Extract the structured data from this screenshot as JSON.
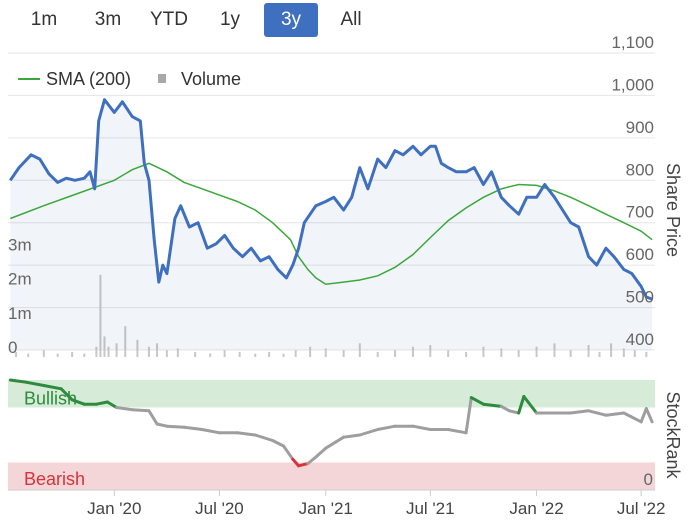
{
  "range_buttons": [
    {
      "label": "1m",
      "active": false
    },
    {
      "label": "3m",
      "active": false
    },
    {
      "label": "YTD",
      "active": false
    },
    {
      "label": "1y",
      "active": false
    },
    {
      "label": "3y",
      "active": true
    },
    {
      "label": "All",
      "active": false
    }
  ],
  "legend": {
    "sma_label": "SMA (200)",
    "volume_label": "Volume"
  },
  "colors": {
    "price": "#3f6fbf",
    "sma": "#3aa83a",
    "volume": "#c8c8c8",
    "rank_neutral": "#9e9e9e",
    "rank_bullish": "#2e8b3e",
    "rank_bearish": "#d9323c",
    "bullish_band": "#d6ecd8",
    "bearish_band": "#f5d6d8",
    "active_button": "#3f6fbf"
  },
  "chart_data": [
    {
      "type": "line",
      "ylabel": "Share Price",
      "ylim": [
        400,
        1100
      ],
      "y_ticks": [
        "400",
        "500",
        "600",
        "700",
        "800",
        "900",
        "1,000",
        "1,100"
      ],
      "x_ticks": [
        "Jan '20",
        "Jul '20",
        "Jan '21",
        "Jul '21",
        "Jan '22",
        "Jul '22"
      ],
      "series": [
        {
          "name": "",
          "role": "price",
          "x": [
            "2019-07-05",
            "2019-07-20",
            "2019-08-10",
            "2019-08-25",
            "2019-09-10",
            "2019-09-25",
            "2019-10-10",
            "2019-10-25",
            "2019-11-10",
            "2019-11-20",
            "2019-11-28",
            "2019-12-05",
            "2019-12-15",
            "2020-01-01",
            "2020-01-15",
            "2020-02-01",
            "2020-02-15",
            "2020-02-22",
            "2020-03-01",
            "2020-03-10",
            "2020-03-18",
            "2020-03-25",
            "2020-04-01",
            "2020-04-15",
            "2020-04-25",
            "2020-05-10",
            "2020-05-25",
            "2020-06-10",
            "2020-06-25",
            "2020-07-10",
            "2020-07-25",
            "2020-08-10",
            "2020-08-25",
            "2020-09-10",
            "2020-09-25",
            "2020-10-10",
            "2020-10-25",
            "2020-11-05",
            "2020-11-15",
            "2020-11-25",
            "2020-12-05",
            "2020-12-15",
            "2021-01-01",
            "2021-01-15",
            "2021-02-01",
            "2021-02-15",
            "2021-03-01",
            "2021-03-15",
            "2021-04-01",
            "2021-04-15",
            "2021-05-01",
            "2021-05-15",
            "2021-06-01",
            "2021-06-15",
            "2021-07-01",
            "2021-07-10",
            "2021-07-20",
            "2021-08-01",
            "2021-08-15",
            "2021-09-01",
            "2021-09-15",
            "2021-10-01",
            "2021-10-15",
            "2021-11-01",
            "2021-11-15",
            "2021-12-01",
            "2021-12-15",
            "2022-01-01",
            "2022-01-15",
            "2022-02-01",
            "2022-02-15",
            "2022-03-01",
            "2022-03-15",
            "2022-04-01",
            "2022-04-15",
            "2022-05-01",
            "2022-05-15",
            "2022-06-01",
            "2022-06-15",
            "2022-07-01",
            "2022-07-10",
            "2022-07-20"
          ],
          "y": [
            800,
            830,
            860,
            850,
            815,
            795,
            805,
            800,
            805,
            820,
            780,
            940,
            990,
            960,
            985,
            950,
            940,
            840,
            800,
            660,
            560,
            600,
            580,
            710,
            740,
            690,
            700,
            640,
            650,
            670,
            640,
            620,
            640,
            610,
            620,
            590,
            570,
            600,
            640,
            700,
            720,
            740,
            750,
            760,
            730,
            760,
            830,
            780,
            850,
            830,
            870,
            860,
            880,
            860,
            880,
            880,
            840,
            830,
            820,
            820,
            830,
            790,
            820,
            760,
            740,
            720,
            760,
            760,
            790,
            760,
            730,
            700,
            690,
            620,
            600,
            640,
            620,
            590,
            580,
            550,
            525,
            520
          ]
        },
        {
          "name": "SMA (200)",
          "role": "sma",
          "x": [
            "2019-07-05",
            "2019-09-01",
            "2019-11-01",
            "2020-01-01",
            "2020-02-01",
            "2020-03-01",
            "2020-04-01",
            "2020-05-01",
            "2020-06-01",
            "2020-07-01",
            "2020-08-01",
            "2020-09-01",
            "2020-10-01",
            "2020-11-01",
            "2020-11-15",
            "2020-12-01",
            "2020-12-15",
            "2021-01-01",
            "2021-02-01",
            "2021-03-01",
            "2021-04-01",
            "2021-05-01",
            "2021-06-01",
            "2021-07-01",
            "2021-08-01",
            "2021-09-01",
            "2021-10-01",
            "2021-11-01",
            "2021-12-01",
            "2022-01-01",
            "2022-02-01",
            "2022-03-01",
            "2022-04-01",
            "2022-05-01",
            "2022-06-01",
            "2022-07-01",
            "2022-07-20"
          ],
          "y": [
            710,
            740,
            770,
            800,
            825,
            840,
            820,
            795,
            780,
            765,
            750,
            730,
            700,
            660,
            620,
            590,
            570,
            555,
            560,
            565,
            575,
            595,
            625,
            665,
            705,
            735,
            760,
            780,
            790,
            788,
            775,
            760,
            740,
            720,
            700,
            680,
            660
          ]
        }
      ]
    },
    {
      "type": "bar",
      "series_name": "Volume",
      "ylim": [
        0,
        4
      ],
      "y_ticks": [
        "0",
        "1m",
        "2m",
        "3m"
      ],
      "x": [
        "2019-07-15",
        "2019-08-05",
        "2019-09-01",
        "2019-09-25",
        "2019-10-20",
        "2019-11-10",
        "2019-12-01",
        "2019-12-08",
        "2019-12-15",
        "2019-12-22",
        "2020-01-05",
        "2020-01-20",
        "2020-02-10",
        "2020-03-01",
        "2020-03-15",
        "2020-04-01",
        "2020-04-20",
        "2020-05-20",
        "2020-06-15",
        "2020-07-10",
        "2020-08-05",
        "2020-09-01",
        "2020-09-25",
        "2020-10-20",
        "2020-11-10",
        "2020-12-05",
        "2021-01-01",
        "2021-02-01",
        "2021-03-01",
        "2021-04-01",
        "2021-05-01",
        "2021-06-01",
        "2021-07-01",
        "2021-08-01",
        "2021-09-01",
        "2021-10-01",
        "2021-11-01",
        "2021-12-01",
        "2022-01-01",
        "2022-02-01",
        "2022-03-01",
        "2022-04-01",
        "2022-04-20",
        "2022-05-10",
        "2022-06-01",
        "2022-06-20",
        "2022-07-10"
      ],
      "values": [
        0.15,
        0.1,
        0.2,
        0.1,
        0.15,
        0.1,
        0.3,
        2.4,
        0.6,
        0.3,
        0.4,
        0.9,
        0.5,
        0.3,
        0.4,
        0.2,
        0.25,
        0.15,
        0.1,
        0.2,
        0.15,
        0.1,
        0.15,
        0.1,
        0.2,
        0.3,
        0.25,
        0.2,
        0.4,
        0.15,
        0.2,
        0.3,
        0.35,
        0.2,
        0.15,
        0.3,
        0.25,
        0.2,
        0.3,
        0.4,
        0.2,
        0.35,
        0.15,
        0.4,
        0.25,
        0.2,
        0.15
      ]
    },
    {
      "type": "line",
      "ylabel": "StockRank",
      "band_labels": {
        "bullish": "Bullish",
        "bearish": "Bearish"
      },
      "y_ticks": [
        "0"
      ],
      "ylim": [
        0,
        100
      ],
      "bullish_threshold": 75,
      "bearish_threshold": 25,
      "series": [
        {
          "name": "",
          "role": "stockrank",
          "x": [
            "2019-07-05",
            "2019-08-01",
            "2019-09-01",
            "2019-10-01",
            "2019-10-20",
            "2019-11-10",
            "2019-12-01",
            "2019-12-20",
            "2020-01-05",
            "2020-02-01",
            "2020-03-01",
            "2020-03-15",
            "2020-04-01",
            "2020-05-01",
            "2020-06-01",
            "2020-07-01",
            "2020-08-01",
            "2020-09-01",
            "2020-10-01",
            "2020-10-20",
            "2020-11-05",
            "2020-11-15",
            "2020-12-01",
            "2020-12-15",
            "2021-01-01",
            "2021-02-01",
            "2021-03-01",
            "2021-04-01",
            "2021-05-01",
            "2021-06-01",
            "2021-07-01",
            "2021-08-01",
            "2021-09-01",
            "2021-09-10",
            "2021-10-01",
            "2021-11-01",
            "2021-11-15",
            "2021-12-01",
            "2021-12-10",
            "2022-01-01",
            "2022-02-01",
            "2022-03-01",
            "2022-04-01",
            "2022-05-01",
            "2022-06-01",
            "2022-07-01",
            "2022-07-10",
            "2022-07-20"
          ],
          "y": [
            100,
            98,
            95,
            92,
            82,
            78,
            78,
            80,
            75,
            73,
            72,
            60,
            58,
            57,
            55,
            52,
            52,
            50,
            45,
            40,
            28,
            22,
            24,
            30,
            38,
            48,
            50,
            55,
            58,
            58,
            55,
            55,
            52,
            84,
            78,
            76,
            72,
            70,
            85,
            70,
            70,
            70,
            72,
            68,
            70,
            62,
            74,
            62
          ]
        }
      ]
    }
  ]
}
